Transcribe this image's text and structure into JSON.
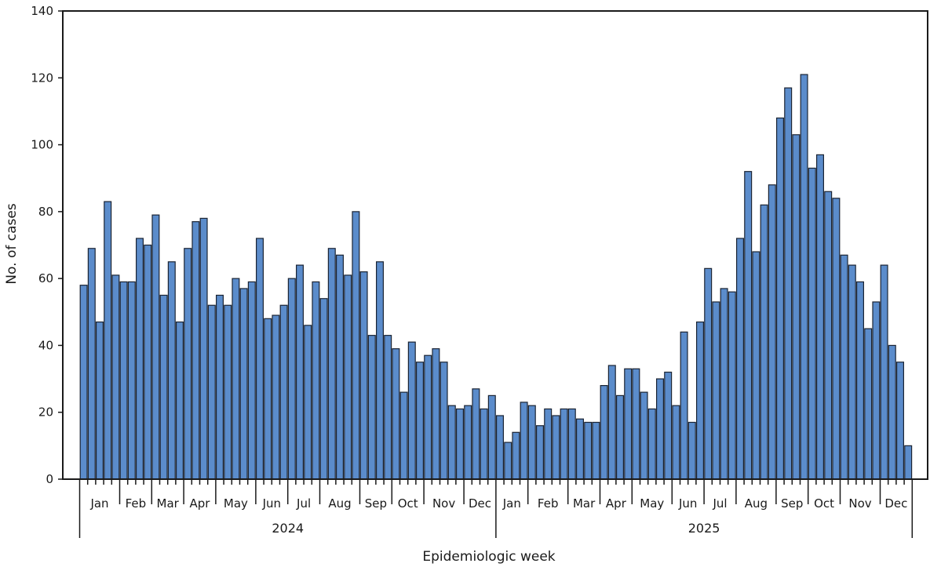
{
  "chart_data": {
    "type": "bar",
    "title": "",
    "xlabel": "Epidemiologic week",
    "ylabel": "No. of cases",
    "ylim": [
      0,
      140
    ],
    "yticks": [
      0,
      20,
      40,
      60,
      80,
      100,
      120,
      140
    ],
    "bar_color": "#5b8ccb",
    "bar_edge_color": "#1b2433",
    "grid": false,
    "legend": "none",
    "years": [
      {
        "label": "2024",
        "start_week": 0,
        "end_week": 52
      },
      {
        "label": "2025",
        "start_week": 52,
        "end_week": 104
      }
    ],
    "months": [
      {
        "label": "Jan",
        "start_week": 0,
        "end_week": 5
      },
      {
        "label": "Feb",
        "start_week": 5,
        "end_week": 9
      },
      {
        "label": "Mar",
        "start_week": 9,
        "end_week": 13
      },
      {
        "label": "Apr",
        "start_week": 13,
        "end_week": 17
      },
      {
        "label": "May",
        "start_week": 17,
        "end_week": 22
      },
      {
        "label": "Jun",
        "start_week": 22,
        "end_week": 26
      },
      {
        "label": "Jul",
        "start_week": 26,
        "end_week": 30
      },
      {
        "label": "Aug",
        "start_week": 30,
        "end_week": 35
      },
      {
        "label": "Sep",
        "start_week": 35,
        "end_week": 39
      },
      {
        "label": "Oct",
        "start_week": 39,
        "end_week": 43
      },
      {
        "label": "Nov",
        "start_week": 43,
        "end_week": 48
      },
      {
        "label": "Dec",
        "start_week": 48,
        "end_week": 52
      },
      {
        "label": "Jan",
        "start_week": 52,
        "end_week": 56
      },
      {
        "label": "Feb",
        "start_week": 56,
        "end_week": 61
      },
      {
        "label": "Mar",
        "start_week": 61,
        "end_week": 65
      },
      {
        "label": "Apr",
        "start_week": 65,
        "end_week": 69
      },
      {
        "label": "May",
        "start_week": 69,
        "end_week": 74
      },
      {
        "label": "Jun",
        "start_week": 74,
        "end_week": 78
      },
      {
        "label": "Jul",
        "start_week": 78,
        "end_week": 82
      },
      {
        "label": "Aug",
        "start_week": 82,
        "end_week": 87
      },
      {
        "label": "Sep",
        "start_week": 87,
        "end_week": 91
      },
      {
        "label": "Oct",
        "start_week": 91,
        "end_week": 95
      },
      {
        "label": "Nov",
        "start_week": 95,
        "end_week": 100
      },
      {
        "label": "Dec",
        "start_week": 100,
        "end_week": 104
      }
    ],
    "values": [
      58,
      69,
      47,
      83,
      61,
      59,
      59,
      72,
      70,
      79,
      55,
      65,
      47,
      69,
      77,
      78,
      52,
      55,
      52,
      60,
      57,
      59,
      72,
      48,
      49,
      52,
      60,
      64,
      46,
      59,
      54,
      69,
      67,
      61,
      80,
      62,
      43,
      65,
      43,
      39,
      26,
      41,
      35,
      37,
      39,
      35,
      22,
      21,
      22,
      27,
      21,
      25,
      19,
      11,
      14,
      23,
      22,
      16,
      21,
      19,
      21,
      21,
      18,
      17,
      17,
      28,
      34,
      25,
      33,
      33,
      26,
      21,
      30,
      32,
      22,
      44,
      17,
      47,
      63,
      53,
      57,
      56,
      72,
      92,
      68,
      82,
      88,
      108,
      117,
      103,
      121,
      93,
      97,
      86,
      84,
      67,
      64,
      59,
      45,
      53,
      64,
      40,
      35,
      10
    ]
  }
}
